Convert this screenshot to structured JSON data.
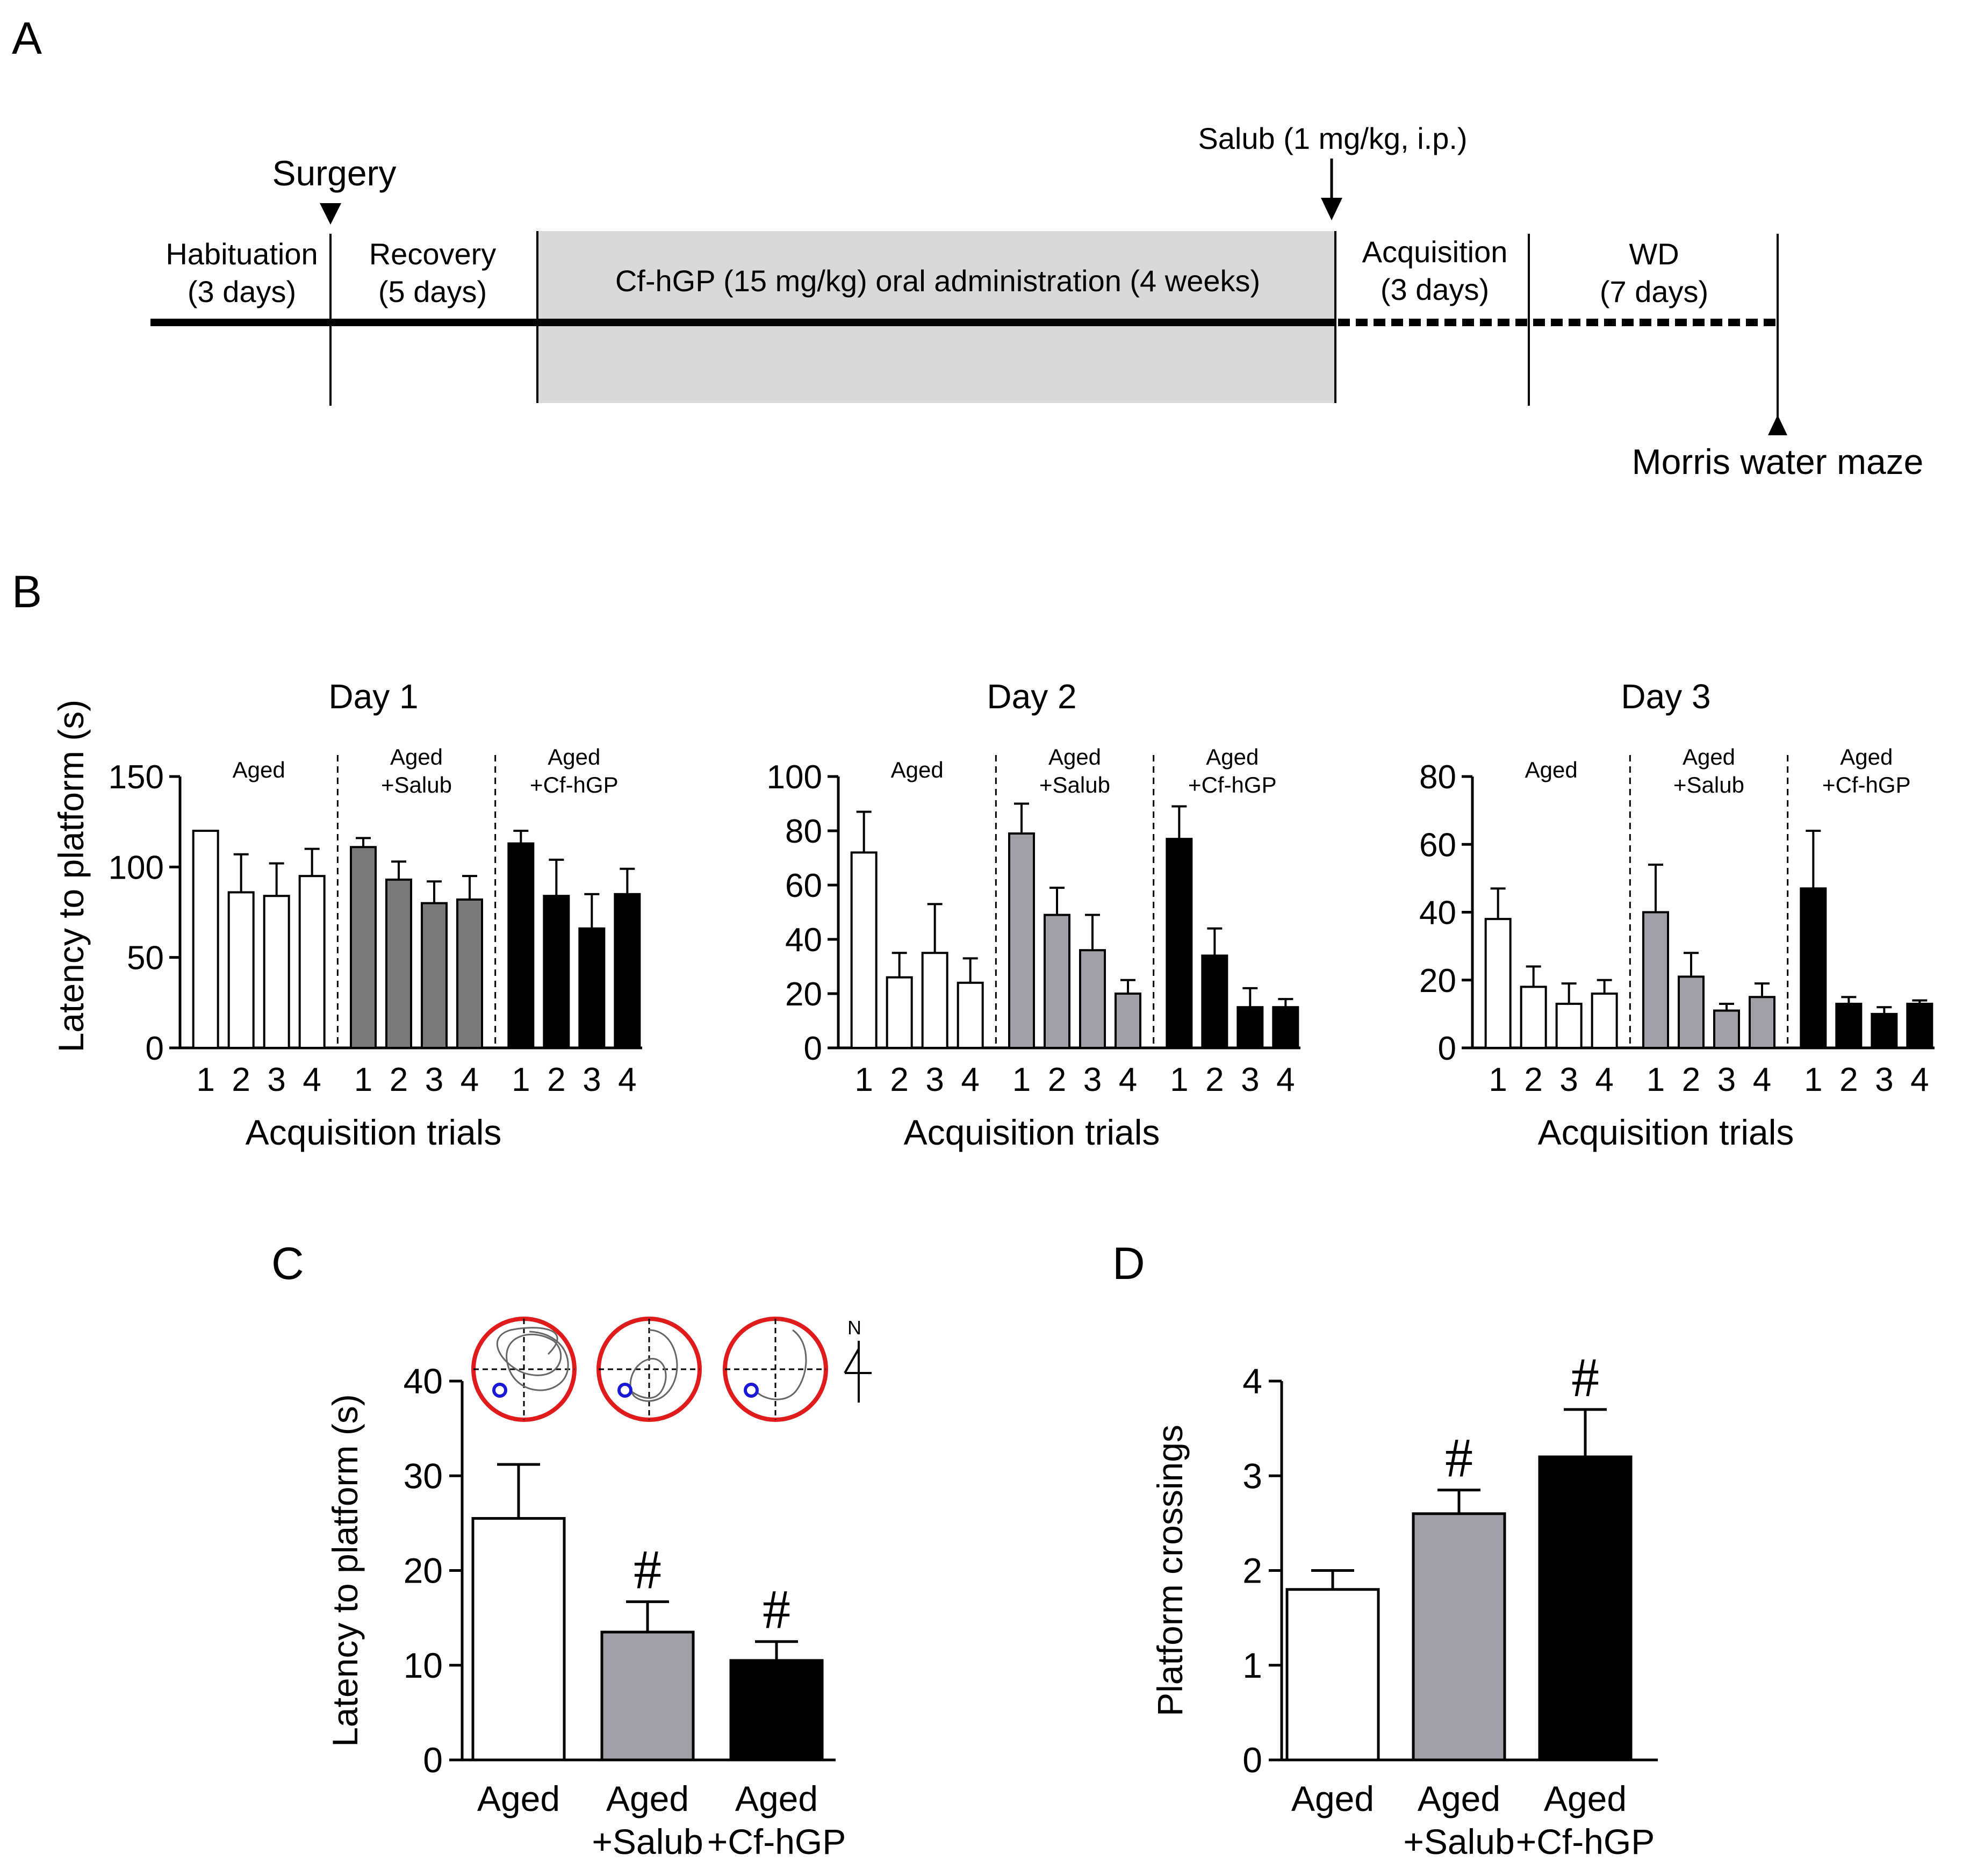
{
  "panels": {
    "A": "A",
    "B": "B",
    "C": "C",
    "D": "D"
  },
  "timeline": {
    "events": {
      "surgery": "Surgery",
      "salub": "Salub (1 mg/kg, i.p.)",
      "mwm": "Morris water maze"
    },
    "phases": [
      {
        "name": "Habituation",
        "duration": "(3 days)"
      },
      {
        "name": "Recovery",
        "duration": "(5 days)"
      },
      {
        "name": "Cf-hGP (15 mg/kg) oral administration (4 weeks)",
        "duration": ""
      },
      {
        "name": "Acquisition",
        "duration": "(3 days)"
      },
      {
        "name": "WD",
        "duration": "(7 days)"
      }
    ],
    "colors": {
      "drug_period": "#d9d9d9",
      "line": "#000000"
    }
  },
  "groups": [
    {
      "name": "Aged",
      "sub": "",
      "color": "#ffffff"
    },
    {
      "name": "Aged",
      "sub": "+Salub",
      "color": "#a0a0a6"
    },
    {
      "name": "Aged",
      "sub": "+Cf-hGP",
      "color": "#000000"
    }
  ],
  "chart_data": [
    {
      "type": "bar",
      "panel": "B",
      "title": "Day 1",
      "ylabel": "Latency to platform (s)",
      "xlabel": "Acquisition trials",
      "ylim": [
        0,
        150
      ],
      "yticks": [
        0,
        50,
        100,
        150
      ],
      "categories": [
        "1",
        "2",
        "3",
        "4"
      ],
      "series": [
        {
          "name": "Aged",
          "values": [
            120,
            86,
            84,
            95
          ],
          "errors": [
            0,
            21,
            18,
            15
          ],
          "color": "#ffffff"
        },
        {
          "name": "Aged +Salub",
          "values": [
            111,
            93,
            80,
            82
          ],
          "errors": [
            5,
            10,
            12,
            13
          ],
          "color": "#7a7a7a"
        },
        {
          "name": "Aged +Cf-hGP",
          "values": [
            113,
            84,
            66,
            85
          ],
          "errors": [
            7,
            20,
            19,
            14
          ],
          "color": "#000000"
        }
      ]
    },
    {
      "type": "bar",
      "panel": "B",
      "title": "Day 2",
      "ylabel": "",
      "xlabel": "Acquisition trials",
      "ylim": [
        0,
        100
      ],
      "yticks": [
        0,
        20,
        40,
        60,
        80,
        100
      ],
      "categories": [
        "1",
        "2",
        "3",
        "4"
      ],
      "series": [
        {
          "name": "Aged",
          "values": [
            72,
            26,
            35,
            24
          ],
          "errors": [
            15,
            9,
            18,
            9
          ],
          "color": "#ffffff"
        },
        {
          "name": "Aged +Salub",
          "values": [
            79,
            49,
            36,
            20
          ],
          "errors": [
            11,
            10,
            13,
            5
          ],
          "color": "#a0a0a6"
        },
        {
          "name": "Aged +Cf-hGP",
          "values": [
            77,
            34,
            15,
            15
          ],
          "errors": [
            12,
            10,
            7,
            3
          ],
          "color": "#000000"
        }
      ]
    },
    {
      "type": "bar",
      "panel": "B",
      "title": "Day 3",
      "ylabel": "",
      "xlabel": "Acquisition trials",
      "ylim": [
        0,
        80
      ],
      "yticks": [
        0,
        20,
        40,
        60,
        80
      ],
      "categories": [
        "1",
        "2",
        "3",
        "4"
      ],
      "series": [
        {
          "name": "Aged",
          "values": [
            38,
            18,
            13,
            16
          ],
          "errors": [
            9,
            6,
            6,
            4
          ],
          "color": "#ffffff"
        },
        {
          "name": "Aged +Salub",
          "values": [
            40,
            21,
            11,
            15
          ],
          "errors": [
            14,
            7,
            2,
            4
          ],
          "color": "#a0a0a6"
        },
        {
          "name": "Aged +Cf-hGP",
          "values": [
            47,
            13,
            10,
            13
          ],
          "errors": [
            17,
            2,
            2,
            1
          ],
          "color": "#000000"
        }
      ]
    },
    {
      "type": "bar",
      "panel": "C",
      "title": "",
      "ylabel": "Latency to platform (s)",
      "xlabel": "",
      "ylim": [
        0,
        40
      ],
      "yticks": [
        0,
        10,
        20,
        30,
        40
      ],
      "categories": [
        "Aged",
        "Aged +Salub",
        "Aged +Cf-hGP"
      ],
      "values": [
        25.5,
        13.5,
        10.5
      ],
      "errors": [
        5.7,
        3.2,
        2.0
      ],
      "colors": [
        "#ffffff",
        "#a0a0a6",
        "#000000"
      ],
      "annotations": [
        "",
        "#",
        "#"
      ],
      "compass": "N"
    },
    {
      "type": "bar",
      "panel": "D",
      "title": "",
      "ylabel": "Platform crossings",
      "xlabel": "",
      "ylim": [
        0,
        4
      ],
      "yticks": [
        0,
        1,
        2,
        3,
        4
      ],
      "categories": [
        "Aged",
        "Aged +Salub",
        "Aged +Cf-hGP"
      ],
      "values": [
        1.8,
        2.6,
        3.2
      ],
      "errors": [
        0.2,
        0.25,
        0.5
      ],
      "colors": [
        "#ffffff",
        "#a0a0a6",
        "#000000"
      ],
      "annotations": [
        "",
        "#",
        "#"
      ]
    }
  ]
}
